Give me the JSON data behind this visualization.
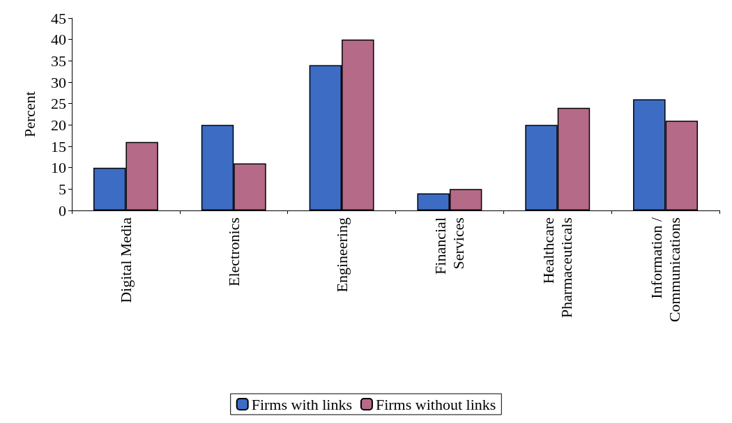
{
  "chart_data": {
    "type": "bar",
    "ylabel": "Percent",
    "categories": [
      "Digital Media",
      "Electronics",
      "Engineering",
      "Financial\nServices",
      "Healthcare\nPharmaceuticals",
      "Information /\nCommunications"
    ],
    "series": [
      {
        "name": "Firms with links",
        "color": "#3d6cc4",
        "values": [
          10,
          20,
          34,
          4,
          20,
          26
        ]
      },
      {
        "name": "Firms without links",
        "color": "#b56a88",
        "values": [
          16,
          11,
          40,
          5,
          24,
          21
        ]
      }
    ],
    "ylim": [
      0,
      45
    ],
    "yticks": [
      0,
      5,
      10,
      15,
      20,
      25,
      30,
      35,
      40,
      45
    ],
    "grid": false,
    "legend": "bottom"
  }
}
